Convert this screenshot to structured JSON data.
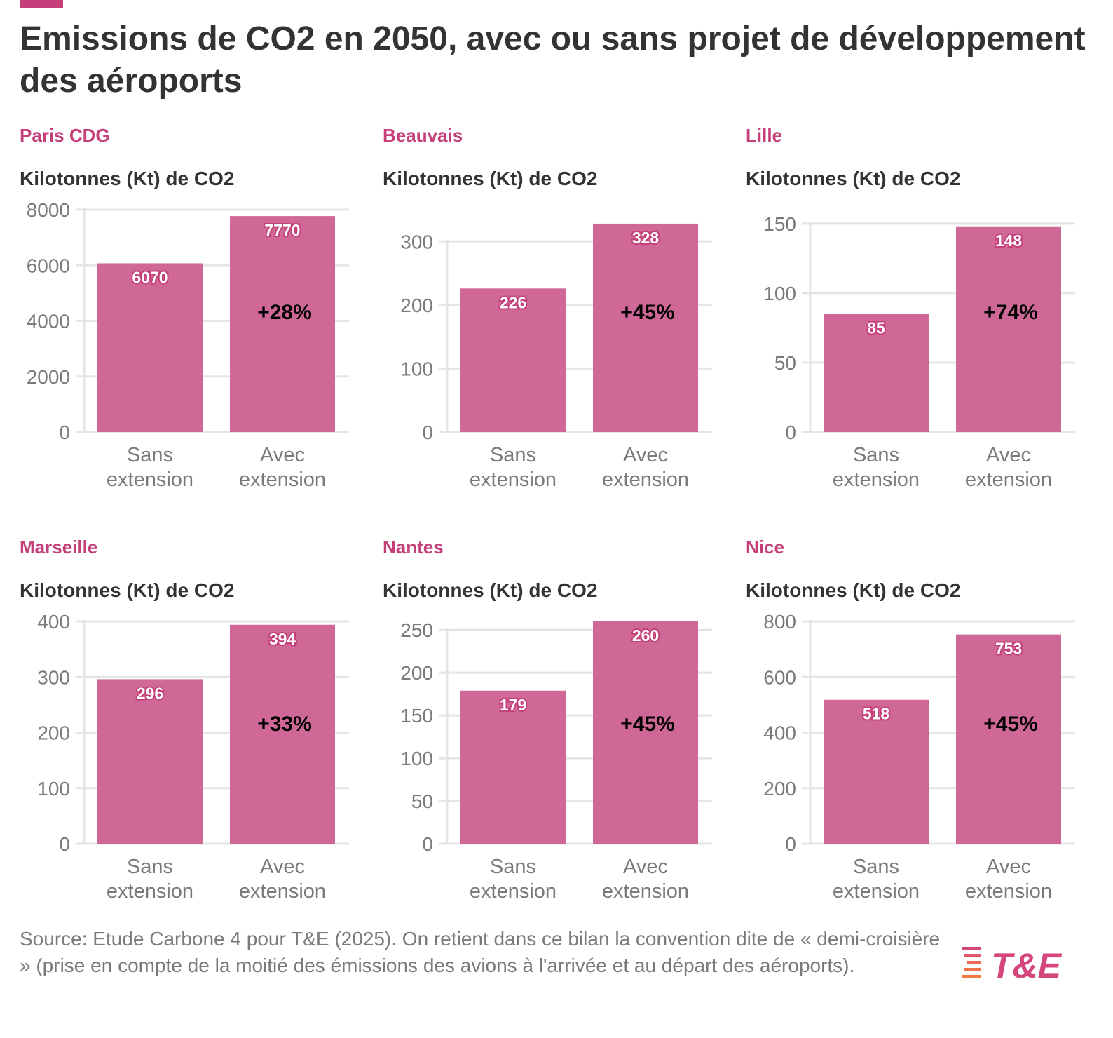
{
  "title": "Emissions de CO2 en 2050, avec ou sans projet de développement des aéroports",
  "colors": {
    "accent": "#c5407a",
    "bar": "#cf6896",
    "grid": "#e5e5e5",
    "axis_text": "#7a7a7a",
    "logo_pink": "#d4467c",
    "logo_orange": "#f07b3f"
  },
  "chart_data": [
    {
      "type": "bar",
      "title": "Paris CDG",
      "ylabel": "Kilotonnes (Kt) de CO2",
      "categories": [
        "Sans extension",
        "Avec extension"
      ],
      "values": [
        6070,
        7770
      ],
      "ylim": [
        0,
        8000
      ],
      "yticks": [
        0,
        2000,
        4000,
        6000,
        8000
      ],
      "value_labels": [
        "6070",
        "7770"
      ],
      "annotation": "+28%"
    },
    {
      "type": "bar",
      "title": "Beauvais",
      "ylabel": "Kilotonnes (Kt) de CO2",
      "categories": [
        "Sans extension",
        "Avec extension"
      ],
      "values": [
        226,
        328
      ],
      "ylim": [
        0,
        350
      ],
      "yticks": [
        0,
        100,
        200,
        300
      ],
      "value_labels": [
        "226",
        "328"
      ],
      "annotation": "+45%"
    },
    {
      "type": "bar",
      "title": "Lille",
      "ylabel": "Kilotonnes (Kt) de CO2",
      "categories": [
        "Sans extension",
        "Avec extension"
      ],
      "values": [
        85,
        148
      ],
      "ylim": [
        0,
        160
      ],
      "yticks": [
        0,
        50,
        100,
        150
      ],
      "value_labels": [
        "85",
        "148"
      ],
      "annotation": "+74%"
    },
    {
      "type": "bar",
      "title": "Marseille",
      "ylabel": "Kilotonnes (Kt) de CO2",
      "categories": [
        "Sans extension",
        "Avec extension"
      ],
      "values": [
        296,
        394
      ],
      "ylim": [
        0,
        400
      ],
      "yticks": [
        0,
        100,
        200,
        300,
        400
      ],
      "value_labels": [
        "296",
        "394"
      ],
      "annotation": "+33%"
    },
    {
      "type": "bar",
      "title": "Nantes",
      "ylabel": "Kilotonnes (Kt) de CO2",
      "categories": [
        "Sans extension",
        "Avec extension"
      ],
      "values": [
        179,
        260
      ],
      "ylim": [
        0,
        260
      ],
      "yticks": [
        0,
        50,
        100,
        150,
        200,
        250
      ],
      "value_labels": [
        "179",
        "260"
      ],
      "annotation": "+45%"
    },
    {
      "type": "bar",
      "title": "Nice",
      "ylabel": "Kilotonnes (Kt) de CO2",
      "categories": [
        "Sans extension",
        "Avec extension"
      ],
      "values": [
        518,
        753
      ],
      "ylim": [
        0,
        800
      ],
      "yticks": [
        0,
        200,
        400,
        600,
        800
      ],
      "value_labels": [
        "518",
        "753"
      ],
      "annotation": "+45%"
    }
  ],
  "footer": {
    "source": "Source: Etude Carbone 4 pour T&E (2025). On retient dans ce bilan la convention dite de « demi-croisière » (prise en compte de la moitié des émissions des avions à l'arrivée et au départ des aéroports)."
  },
  "logo": {
    "text": "T&E"
  }
}
